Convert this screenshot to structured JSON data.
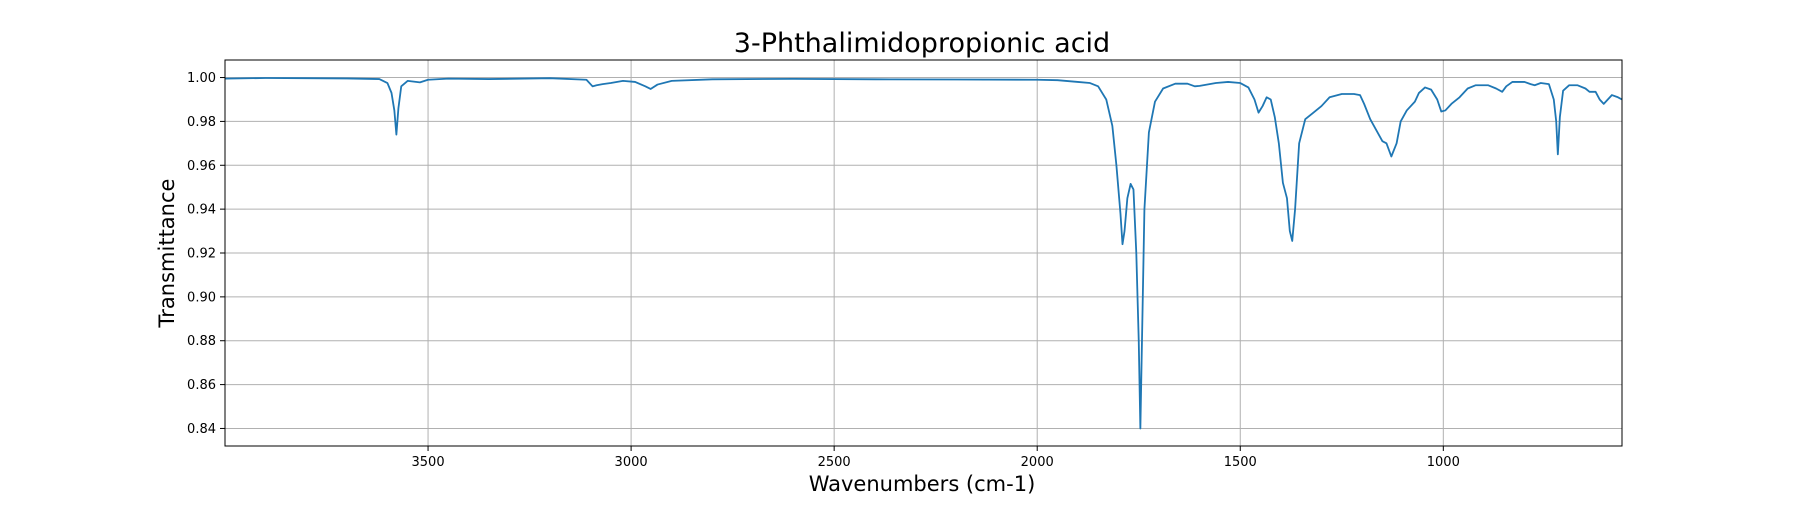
{
  "chart_data": {
    "type": "line",
    "title": "3-Phthalimidopropionic acid",
    "xlabel": "Wavenumbers (cm-1)",
    "ylabel": "Transmittance",
    "xlim": [
      4000,
      560
    ],
    "ylim": [
      0.832,
      1.008
    ],
    "x_inverted": true,
    "grid": true,
    "xticks": [
      3500,
      3000,
      2500,
      2000,
      1500,
      1000
    ],
    "xtick_labels": [
      "3500",
      "3000",
      "2500",
      "2000",
      "1500",
      "1000"
    ],
    "yticks": [
      0.84,
      0.86,
      0.88,
      0.9,
      0.92,
      0.94,
      0.96,
      0.98,
      1.0
    ],
    "ytick_labels": [
      "0.84",
      "0.86",
      "0.88",
      "0.90",
      "0.92",
      "0.94",
      "0.96",
      "0.98",
      "1.00"
    ],
    "series": [
      {
        "color": "#1f77b4",
        "points": [
          [
            4000,
            0.9995
          ],
          [
            3900,
            0.9998
          ],
          [
            3800,
            0.9997
          ],
          [
            3700,
            0.9996
          ],
          [
            3620,
            0.9993
          ],
          [
            3600,
            0.9975
          ],
          [
            3590,
            0.993
          ],
          [
            3583,
            0.985
          ],
          [
            3578,
            0.974
          ],
          [
            3573,
            0.986
          ],
          [
            3566,
            0.996
          ],
          [
            3550,
            0.9985
          ],
          [
            3520,
            0.9978
          ],
          [
            3500,
            0.999
          ],
          [
            3450,
            0.9995
          ],
          [
            3350,
            0.9993
          ],
          [
            3200,
            0.9997
          ],
          [
            3110,
            0.999
          ],
          [
            3095,
            0.996
          ],
          [
            3085,
            0.9965
          ],
          [
            3070,
            0.997
          ],
          [
            3050,
            0.9975
          ],
          [
            3020,
            0.9985
          ],
          [
            2990,
            0.998
          ],
          [
            2965,
            0.996
          ],
          [
            2952,
            0.9948
          ],
          [
            2935,
            0.9968
          ],
          [
            2900,
            0.9985
          ],
          [
            2800,
            0.9992
          ],
          [
            2600,
            0.9994
          ],
          [
            2400,
            0.9992
          ],
          [
            2200,
            0.9991
          ],
          [
            2000,
            0.999
          ],
          [
            1950,
            0.9988
          ],
          [
            1900,
            0.998
          ],
          [
            1870,
            0.9975
          ],
          [
            1850,
            0.996
          ],
          [
            1830,
            0.99
          ],
          [
            1815,
            0.978
          ],
          [
            1805,
            0.96
          ],
          [
            1795,
            0.938
          ],
          [
            1790,
            0.924
          ],
          [
            1785,
            0.93
          ],
          [
            1778,
            0.945
          ],
          [
            1770,
            0.9515
          ],
          [
            1763,
            0.949
          ],
          [
            1756,
            0.92
          ],
          [
            1750,
            0.88
          ],
          [
            1746,
            0.84
          ],
          [
            1742,
            0.88
          ],
          [
            1736,
            0.94
          ],
          [
            1725,
            0.975
          ],
          [
            1710,
            0.989
          ],
          [
            1690,
            0.995
          ],
          [
            1660,
            0.9972
          ],
          [
            1630,
            0.9972
          ],
          [
            1612,
            0.996
          ],
          [
            1600,
            0.9962
          ],
          [
            1560,
            0.9975
          ],
          [
            1530,
            0.998
          ],
          [
            1500,
            0.9975
          ],
          [
            1480,
            0.9955
          ],
          [
            1465,
            0.99
          ],
          [
            1455,
            0.984
          ],
          [
            1445,
            0.987
          ],
          [
            1435,
            0.991
          ],
          [
            1425,
            0.99
          ],
          [
            1415,
            0.982
          ],
          [
            1405,
            0.97
          ],
          [
            1395,
            0.952
          ],
          [
            1385,
            0.945
          ],
          [
            1378,
            0.93
          ],
          [
            1372,
            0.9255
          ],
          [
            1365,
            0.94
          ],
          [
            1355,
            0.97
          ],
          [
            1340,
            0.981
          ],
          [
            1320,
            0.984
          ],
          [
            1300,
            0.987
          ],
          [
            1280,
            0.991
          ],
          [
            1250,
            0.9925
          ],
          [
            1220,
            0.9925
          ],
          [
            1205,
            0.992
          ],
          [
            1195,
            0.988
          ],
          [
            1180,
            0.981
          ],
          [
            1165,
            0.976
          ],
          [
            1150,
            0.971
          ],
          [
            1140,
            0.97
          ],
          [
            1128,
            0.964
          ],
          [
            1115,
            0.97
          ],
          [
            1105,
            0.98
          ],
          [
            1090,
            0.985
          ],
          [
            1070,
            0.989
          ],
          [
            1060,
            0.993
          ],
          [
            1045,
            0.9955
          ],
          [
            1030,
            0.9945
          ],
          [
            1015,
            0.99
          ],
          [
            1005,
            0.9845
          ],
          [
            995,
            0.985
          ],
          [
            980,
            0.988
          ],
          [
            960,
            0.991
          ],
          [
            940,
            0.995
          ],
          [
            920,
            0.9965
          ],
          [
            890,
            0.9965
          ],
          [
            870,
            0.995
          ],
          [
            855,
            0.9935
          ],
          [
            845,
            0.996
          ],
          [
            830,
            0.998
          ],
          [
            800,
            0.998
          ],
          [
            785,
            0.997
          ],
          [
            775,
            0.9965
          ],
          [
            760,
            0.9975
          ],
          [
            740,
            0.997
          ],
          [
            728,
            0.99
          ],
          [
            722,
            0.98
          ],
          [
            718,
            0.965
          ],
          [
            713,
            0.982
          ],
          [
            705,
            0.994
          ],
          [
            690,
            0.9965
          ],
          [
            670,
            0.9965
          ],
          [
            650,
            0.995
          ],
          [
            640,
            0.9935
          ],
          [
            625,
            0.9935
          ],
          [
            615,
            0.99
          ],
          [
            605,
            0.988
          ],
          [
            595,
            0.99
          ],
          [
            585,
            0.992
          ],
          [
            570,
            0.991
          ],
          [
            560,
            0.99
          ]
        ]
      }
    ]
  }
}
